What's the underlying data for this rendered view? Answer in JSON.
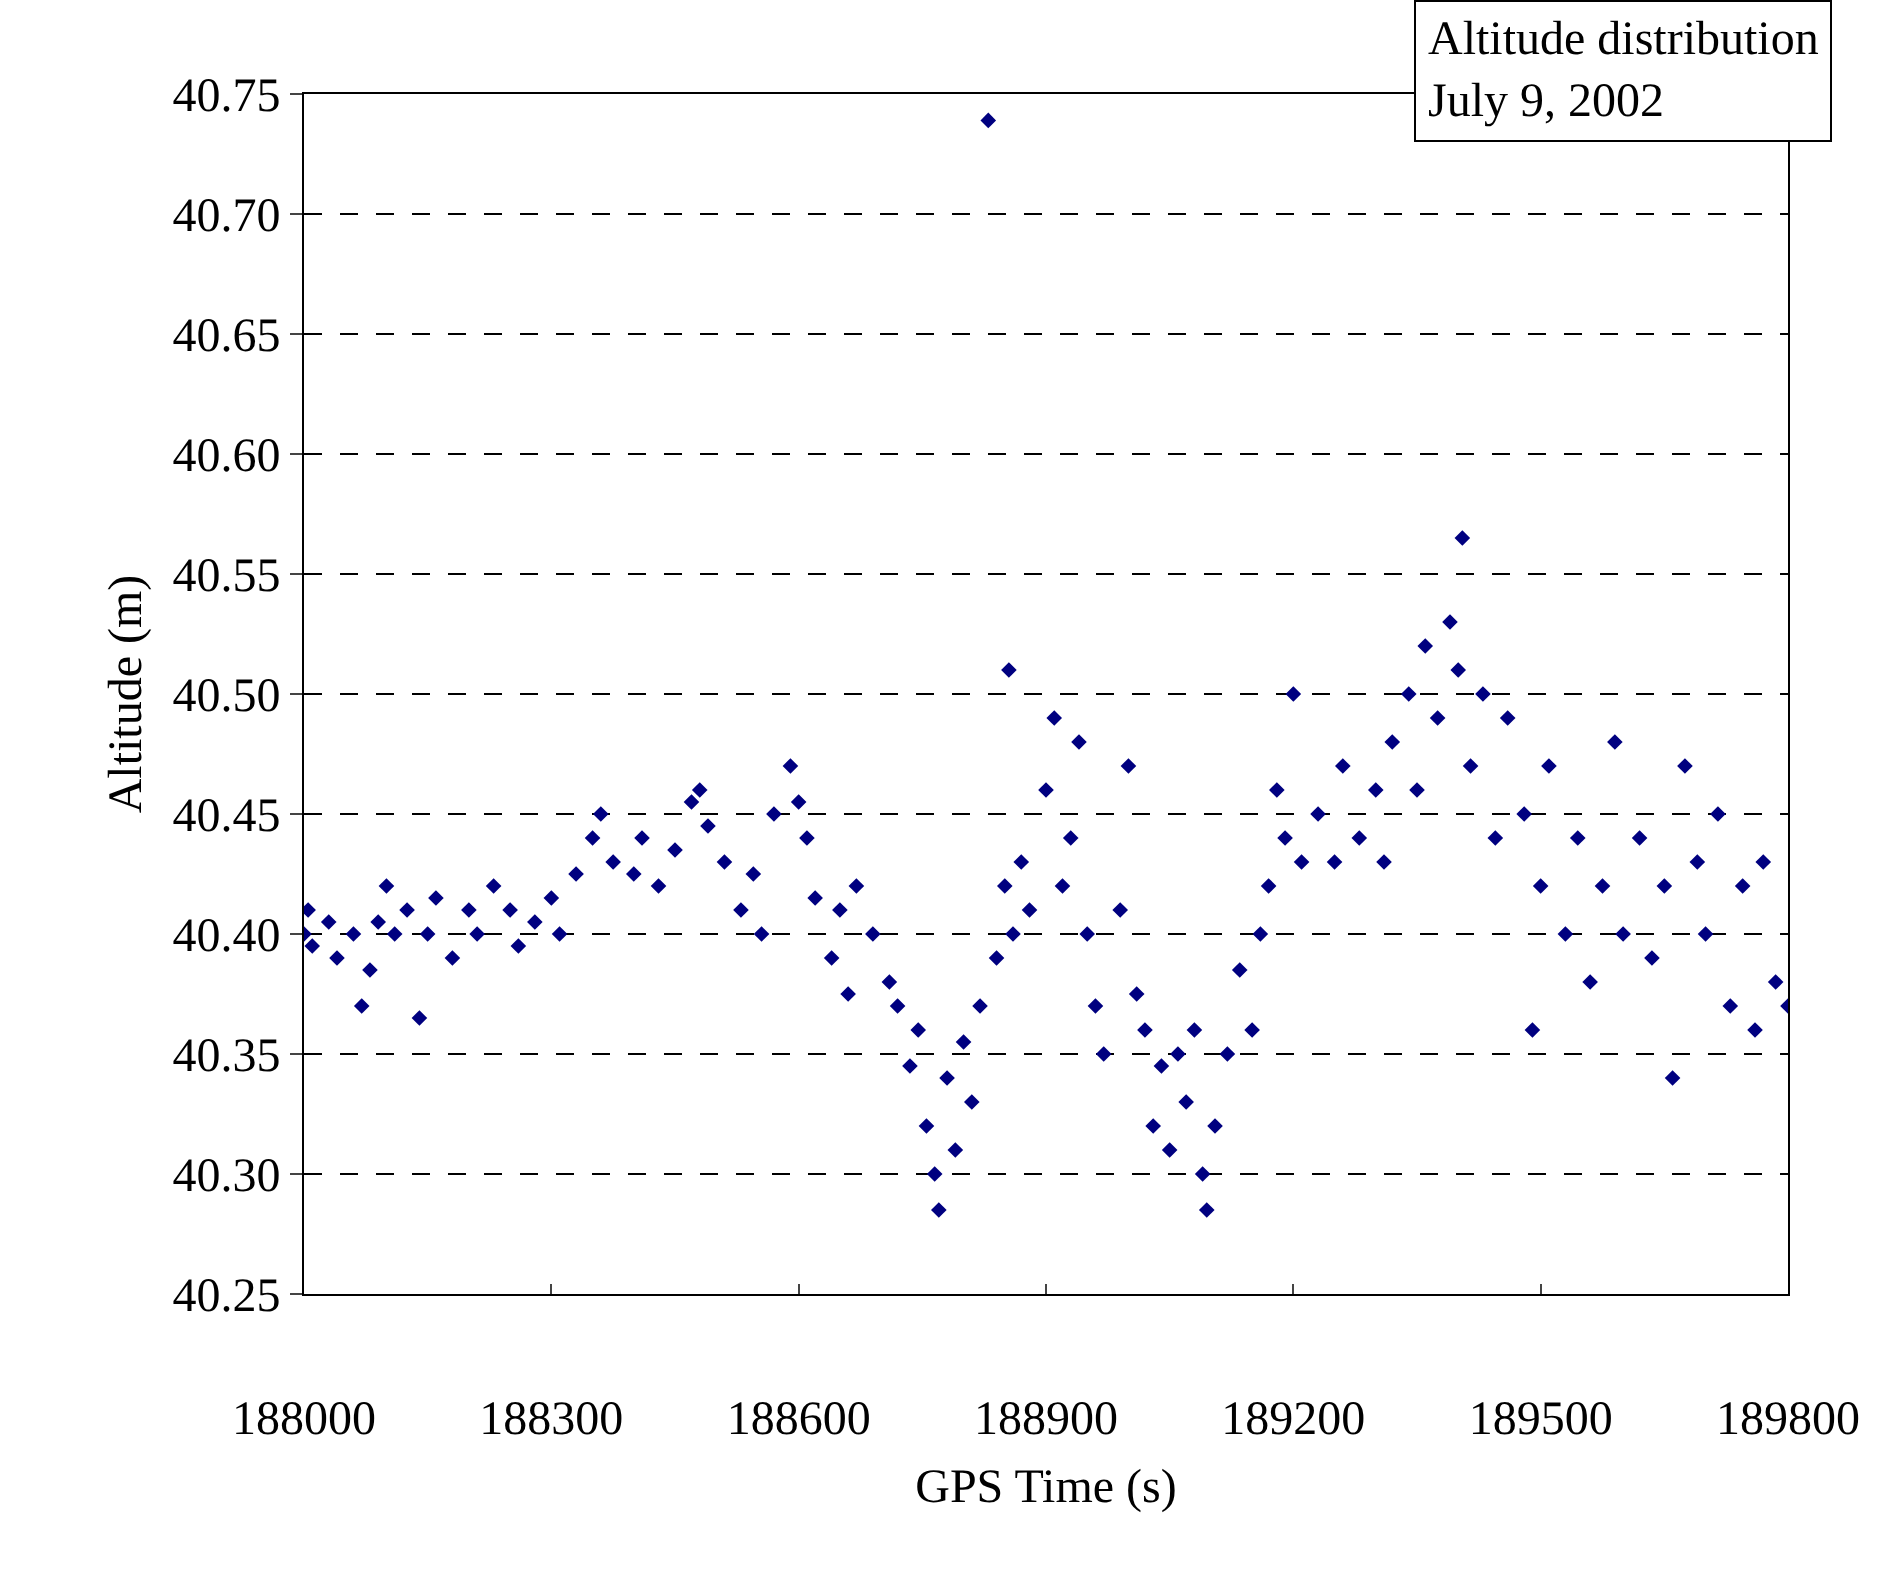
{
  "chart_data": {
    "type": "scatter",
    "xlabel": "GPS Time (s)",
    "ylabel": "Altitude (m)",
    "annotations": [
      "Altitude distribution\nJuly 9, 2002"
    ],
    "x": [
      188000,
      188005,
      188010,
      188030,
      188040,
      188060,
      188070,
      188080,
      188090,
      188100,
      188110,
      188125,
      188140,
      188150,
      188160,
      188180,
      188200,
      188210,
      188230,
      188250,
      188260,
      188280,
      188300,
      188310,
      188330,
      188350,
      188360,
      188375,
      188400,
      188410,
      188430,
      188450,
      188470,
      188480,
      188490,
      188510,
      188530,
      188545,
      188555,
      188570,
      188590,
      188600,
      188610,
      188620,
      188640,
      188650,
      188660,
      188670,
      188690,
      188710,
      188720,
      188735,
      188745,
      188755,
      188765,
      188770,
      188780,
      188790,
      188800,
      188810,
      188820,
      188830,
      188840,
      188850,
      188855,
      188860,
      188870,
      188880,
      188900,
      188910,
      188920,
      188930,
      188940,
      188950,
      188960,
      188970,
      188990,
      189000,
      189010,
      189020,
      189030,
      189040,
      189050,
      189060,
      189070,
      189080,
      189090,
      189095,
      189105,
      189120,
      189135,
      189150,
      189160,
      189170,
      189180,
      189190,
      189200,
      189210,
      189230,
      189250,
      189260,
      189280,
      189300,
      189310,
      189320,
      189340,
      189350,
      189360,
      189375,
      189390,
      189400,
      189405,
      189415,
      189430,
      189445,
      189460,
      189480,
      189490,
      189500,
      189510,
      189530,
      189545,
      189560,
      189575,
      189590,
      189600,
      189620,
      189635,
      189650,
      189660,
      189675,
      189690,
      189700,
      189715,
      189730,
      189745,
      189760,
      189770,
      189785,
      189800
    ],
    "series": [
      {
        "color": "#000080",
        "values": [
          40.4,
          40.41,
          40.395,
          40.405,
          40.39,
          40.4,
          40.37,
          40.385,
          40.405,
          40.42,
          40.4,
          40.41,
          40.365,
          40.4,
          40.415,
          40.39,
          40.41,
          40.4,
          40.42,
          40.41,
          40.395,
          40.405,
          40.415,
          40.4,
          40.425,
          40.44,
          40.45,
          40.43,
          40.425,
          40.44,
          40.42,
          40.435,
          40.455,
          40.46,
          40.445,
          40.43,
          40.41,
          40.425,
          40.4,
          40.45,
          40.47,
          40.455,
          40.44,
          40.415,
          40.39,
          40.41,
          40.375,
          40.42,
          40.4,
          40.38,
          40.37,
          40.345,
          40.36,
          40.32,
          40.3,
          40.285,
          40.34,
          40.31,
          40.355,
          40.33,
          40.37,
          40.739,
          40.39,
          40.42,
          40.51,
          40.4,
          40.43,
          40.41,
          40.46,
          40.49,
          40.42,
          40.44,
          40.48,
          40.4,
          40.37,
          40.35,
          40.41,
          40.47,
          40.375,
          40.36,
          40.32,
          40.345,
          40.31,
          40.35,
          40.33,
          40.36,
          40.3,
          40.285,
          40.32,
          40.35,
          40.385,
          40.36,
          40.4,
          40.42,
          40.46,
          40.44,
          40.5,
          40.43,
          40.45,
          40.43,
          40.47,
          40.44,
          40.46,
          40.43,
          40.48,
          40.5,
          40.46,
          40.52,
          40.49,
          40.53,
          40.51,
          40.565,
          40.47,
          40.5,
          40.44,
          40.49,
          40.45,
          40.36,
          40.42,
          40.47,
          40.4,
          40.44,
          40.38,
          40.42,
          40.48,
          40.4,
          40.44,
          40.39,
          40.42,
          40.34,
          40.47,
          40.43,
          40.4,
          40.45,
          40.37,
          40.42,
          40.36,
          40.43,
          40.38,
          40.37
        ]
      }
    ],
    "xlim": [
      188000,
      189800
    ],
    "xticks": [
      188000,
      188300,
      188600,
      188900,
      189200,
      189500,
      189800
    ],
    "ylim": [
      40.25,
      40.75
    ],
    "yticks": [
      {
        "value": 40.25,
        "label": "40.25"
      },
      {
        "value": 40.3,
        "label": "40.30"
      },
      {
        "value": 40.35,
        "label": "40.35"
      },
      {
        "value": 40.4,
        "label": "40.40"
      },
      {
        "value": 40.45,
        "label": "40.45"
      },
      {
        "value": 40.5,
        "label": "40.50"
      },
      {
        "value": 40.55,
        "label": "40.55"
      },
      {
        "value": 40.6,
        "label": "40.60"
      },
      {
        "value": 40.65,
        "label": "40.65"
      },
      {
        "value": 40.7,
        "label": "40.70"
      },
      {
        "value": 40.75,
        "label": "40.75"
      }
    ],
    "grid": "y",
    "marker": "diamond"
  }
}
